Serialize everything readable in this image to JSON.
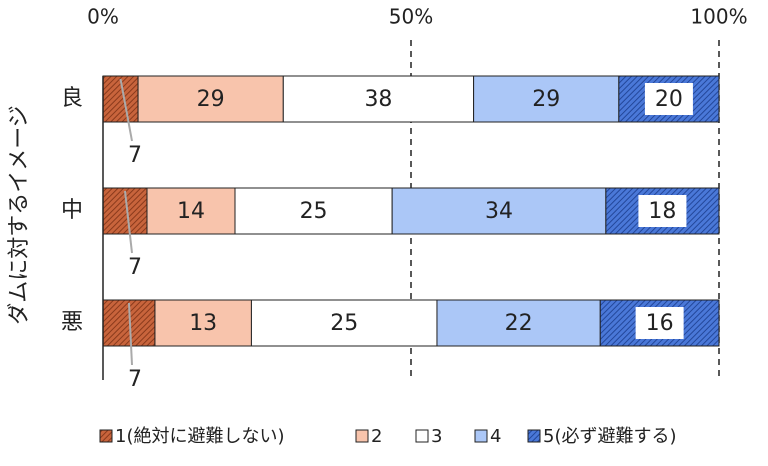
{
  "chart_data": {
    "type": "stacked-bar-100",
    "y_label": "ダムに対するイメージ",
    "categories": [
      "良",
      "中",
      "悪"
    ],
    "xlim": [
      0,
      100
    ],
    "xticks": [
      {
        "value": 0,
        "label": "0%"
      },
      {
        "value": 50,
        "label": "50%"
      },
      {
        "value": 100,
        "label": "100%"
      }
    ],
    "series": [
      {
        "name": "1(絶対に避難しない)",
        "color": "#c8643c",
        "values": [
          7,
          7,
          7
        ]
      },
      {
        "name": "2",
        "color": "#f8c4ac",
        "values": [
          29,
          14,
          13
        ]
      },
      {
        "name": "3",
        "color": "#ffffff",
        "values": [
          38,
          25,
          25
        ]
      },
      {
        "name": "4",
        "color": "#abc7f7",
        "values": [
          29,
          34,
          22
        ]
      },
      {
        "name": "5(必ず避難する)",
        "color": "#4a78d8",
        "values": [
          20,
          18,
          16
        ]
      }
    ]
  }
}
